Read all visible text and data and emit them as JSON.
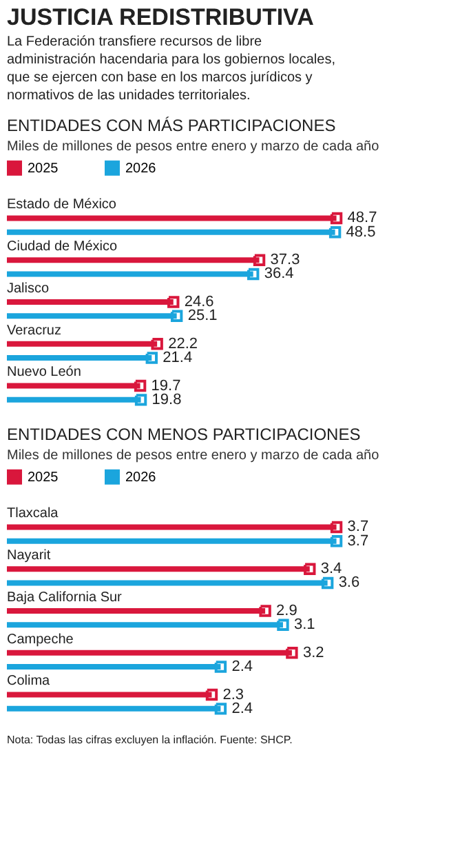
{
  "chart_data": [
    {
      "type": "bar",
      "orientation": "horizontal",
      "title": "ENTIDADES CON MÁS PARTICIPACIONES",
      "subtitle": "Miles de millones de pesos entre enero y marzo de cada año",
      "annotations": [
        "JUSTICIA REDISTRIBUTIVA",
        "La Federación transfiere recursos de libre administración hacendaria para los gobiernos locales, que se ejercen con base en los marcos jurídicos y normativos de las unidades territoriales."
      ],
      "categories": [
        "Estado de México",
        "Ciudad de México",
        "Jalisco",
        "Veracruz",
        "Nuevo León"
      ],
      "series": [
        {
          "name": "2025",
          "color": "#d9173c",
          "values": [
            48.7,
            37.3,
            24.6,
            22.2,
            19.7
          ]
        },
        {
          "name": "2026",
          "color": "#1ba5dd",
          "values": [
            48.5,
            36.4,
            25.1,
            21.4,
            19.8
          ]
        }
      ],
      "data_labels": true,
      "marker": "square",
      "legend": "top left"
    },
    {
      "type": "bar",
      "orientation": "horizontal",
      "title": "ENTIDADES CON MENOS PARTICIPACIONES",
      "subtitle": "Miles de millones de pesos entre enero y marzo de cada año",
      "annotations": [
        "Nota: Todas las cifras excluyen la inflación. Fuente: SHCP."
      ],
      "categories": [
        "Tlaxcala",
        "Nayarit",
        "Baja California Sur",
        "Campeche",
        "Colima"
      ],
      "series": [
        {
          "name": "2025",
          "color": "#d9173c",
          "values": [
            3.7,
            3.4,
            2.9,
            3.2,
            2.3
          ]
        },
        {
          "name": "2026",
          "color": "#1ba5dd",
          "values": [
            3.7,
            3.6,
            3.1,
            2.4,
            2.4
          ]
        }
      ],
      "data_labels": true,
      "marker": "square",
      "legend": "top left"
    }
  ]
}
